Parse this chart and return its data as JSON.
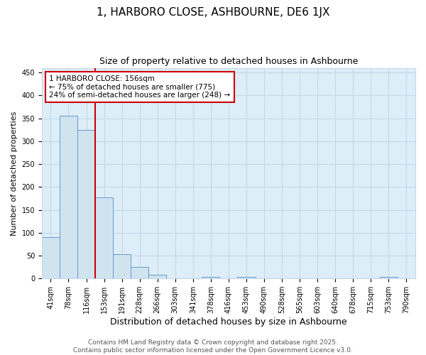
{
  "title": "1, HARBORO CLOSE, ASHBOURNE, DE6 1JX",
  "subtitle": "Size of property relative to detached houses in Ashbourne",
  "xlabel": "Distribution of detached houses by size in Ashbourne",
  "ylabel": "Number of detached properties",
  "categories": [
    "41sqm",
    "78sqm",
    "116sqm",
    "153sqm",
    "191sqm",
    "228sqm",
    "266sqm",
    "303sqm",
    "341sqm",
    "378sqm",
    "416sqm",
    "453sqm",
    "490sqm",
    "528sqm",
    "565sqm",
    "603sqm",
    "640sqm",
    "678sqm",
    "715sqm",
    "753sqm",
    "790sqm"
  ],
  "values": [
    90,
    355,
    325,
    178,
    53,
    25,
    8,
    0,
    0,
    3,
    0,
    3,
    0,
    0,
    0,
    0,
    0,
    0,
    0,
    3,
    0
  ],
  "bar_color": "#d0e4f0",
  "bar_edge_color": "#6699cc",
  "red_line_index": 3,
  "annotation_text": "1 HARBORO CLOSE: 156sqm\n← 75% of detached houses are smaller (775)\n24% of semi-detached houses are larger (248) →",
  "annotation_box_color": "#ffffff",
  "annotation_box_edge_color": "#cc0000",
  "ylim": [
    0,
    460
  ],
  "yticks": [
    0,
    50,
    100,
    150,
    200,
    250,
    300,
    350,
    400,
    450
  ],
  "grid_color": "#c5d8ea",
  "plot_bg_color": "#ddeef8",
  "figure_bg_color": "#ffffff",
  "footer_line1": "Contains HM Land Registry data © Crown copyright and database right 2025.",
  "footer_line2": "Contains public sector information licensed under the Open Government Licence v3.0.",
  "title_fontsize": 11,
  "subtitle_fontsize": 9,
  "xlabel_fontsize": 9,
  "ylabel_fontsize": 8,
  "tick_fontsize": 7,
  "annotation_fontsize": 7.5,
  "footer_fontsize": 6.5
}
